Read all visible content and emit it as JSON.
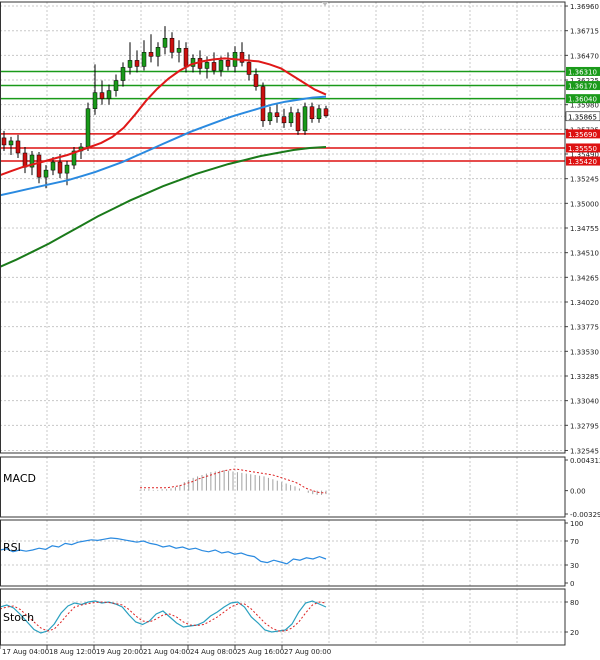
{
  "chart_data": {
    "type": "candlestick",
    "price_axis": {
      "ticks": [
        "1.36960",
        "1.36715",
        "1.36470",
        "1.36225",
        "1.35980",
        "1.35735",
        "1.35490",
        "1.35245",
        "1.35000",
        "1.34755",
        "1.34510",
        "1.34265",
        "1.34020",
        "1.33775",
        "1.33530",
        "1.33285",
        "1.33040",
        "1.32795",
        "1.32545"
      ],
      "range": [
        1.3252,
        1.37
      ]
    },
    "time_axis": {
      "labels": [
        "17 Aug 04:00",
        "18 Aug 12:00",
        "19 Aug 20:00",
        "21 Aug 04:00",
        "24 Aug 08:00",
        "25 Aug 16:00",
        "27 Aug 00:00"
      ]
    },
    "levels": [
      {
        "value": "1.36310",
        "color": "#1a9a1a"
      },
      {
        "value": "1.36170",
        "color": "#1a9a1a"
      },
      {
        "value": "1.36040",
        "color": "#1a9a1a"
      },
      {
        "value": "1.35690",
        "color": "#dd1111"
      },
      {
        "value": "1.35550",
        "color": "#dd1111"
      },
      {
        "value": "1.35420",
        "color": "#dd1111"
      }
    ],
    "current_price": "1.35865",
    "candles": [
      [
        1.3565,
        1.3572,
        1.3552,
        1.3558
      ],
      [
        1.3558,
        1.3566,
        1.3548,
        1.3562
      ],
      [
        1.3562,
        1.3568,
        1.3545,
        1.355
      ],
      [
        1.355,
        1.3556,
        1.353,
        1.3536
      ],
      [
        1.3536,
        1.3552,
        1.3528,
        1.3548
      ],
      [
        1.3548,
        1.3551,
        1.352,
        1.3526
      ],
      [
        1.3526,
        1.3538,
        1.3515,
        1.3533
      ],
      [
        1.3533,
        1.3546,
        1.3528,
        1.3541
      ],
      [
        1.3541,
        1.3549,
        1.3525,
        1.353
      ],
      [
        1.353,
        1.3542,
        1.3518,
        1.3538
      ],
      [
        1.3538,
        1.3556,
        1.3534,
        1.3552
      ],
      [
        1.3552,
        1.356,
        1.3544,
        1.3556
      ],
      [
        1.3556,
        1.36,
        1.3552,
        1.3594
      ],
      [
        1.3594,
        1.3638,
        1.3588,
        1.361
      ],
      [
        1.361,
        1.3622,
        1.3598,
        1.3604
      ],
      [
        1.3604,
        1.3618,
        1.3598,
        1.3612
      ],
      [
        1.3612,
        1.3628,
        1.3606,
        1.3622
      ],
      [
        1.3622,
        1.364,
        1.3616,
        1.3635
      ],
      [
        1.3635,
        1.366,
        1.3628,
        1.3642
      ],
      [
        1.3642,
        1.3652,
        1.363,
        1.3636
      ],
      [
        1.3636,
        1.3662,
        1.3632,
        1.365
      ],
      [
        1.365,
        1.3668,
        1.364,
        1.3646
      ],
      [
        1.3646,
        1.366,
        1.3636,
        1.3655
      ],
      [
        1.3655,
        1.3676,
        1.3648,
        1.3664
      ],
      [
        1.3664,
        1.367,
        1.3644,
        1.365
      ],
      [
        1.365,
        1.3662,
        1.364,
        1.3654
      ],
      [
        1.3654,
        1.366,
        1.363,
        1.3636
      ],
      [
        1.3636,
        1.3648,
        1.363,
        1.3644
      ],
      [
        1.3644,
        1.3652,
        1.3628,
        1.3634
      ],
      [
        1.3634,
        1.3646,
        1.3624,
        1.364
      ],
      [
        1.364,
        1.365,
        1.3628,
        1.3632
      ],
      [
        1.3632,
        1.3646,
        1.3626,
        1.3642
      ],
      [
        1.3642,
        1.365,
        1.3632,
        1.3636
      ],
      [
        1.3636,
        1.3656,
        1.363,
        1.365
      ],
      [
        1.365,
        1.366,
        1.3636,
        1.364
      ],
      [
        1.364,
        1.3648,
        1.3622,
        1.3628
      ],
      [
        1.3628,
        1.3634,
        1.3612,
        1.3616
      ],
      [
        1.3616,
        1.362,
        1.3576,
        1.3582
      ],
      [
        1.3582,
        1.3596,
        1.3578,
        1.359
      ],
      [
        1.359,
        1.3598,
        1.358,
        1.3586
      ],
      [
        1.3586,
        1.3594,
        1.3575,
        1.358
      ],
      [
        1.358,
        1.3596,
        1.3576,
        1.359
      ],
      [
        1.359,
        1.3594,
        1.3568,
        1.3572
      ],
      [
        1.3572,
        1.36,
        1.3568,
        1.3596
      ],
      [
        1.3596,
        1.36,
        1.358,
        1.3584
      ],
      [
        1.3584,
        1.3598,
        1.358,
        1.3594
      ],
      [
        1.3594,
        1.3597,
        1.3585,
        1.3587
      ]
    ],
    "ma_red": [
      1.3528,
      1.3532,
      1.3536,
      1.3539,
      1.3542,
      1.3545,
      1.3548,
      1.3552,
      1.3556,
      1.356,
      1.3566,
      1.3575,
      1.3588,
      1.3602,
      1.3614,
      1.3624,
      1.3632,
      1.3638,
      1.3641,
      1.3643,
      1.3644,
      1.3643,
      1.3642,
      1.3641,
      1.3638,
      1.3634,
      1.3627,
      1.362,
      1.3613,
      1.3608
    ],
    "ma_blue": [
      1.3508,
      1.3511,
      1.3514,
      1.3517,
      1.352,
      1.3523,
      1.3527,
      1.3531,
      1.3536,
      1.3541,
      1.3547,
      1.3553,
      1.3559,
      1.3565,
      1.3571,
      1.3576,
      1.3581,
      1.3586,
      1.359,
      1.3594,
      1.3598,
      1.3601,
      1.3603,
      1.3605,
      1.3606
    ],
    "ma_green": [
      1.3437,
      1.3444,
      1.3452,
      1.346,
      1.3469,
      1.3478,
      1.3487,
      1.3495,
      1.3503,
      1.351,
      1.3517,
      1.3523,
      1.3529,
      1.3534,
      1.3539,
      1.3543,
      1.3547,
      1.355,
      1.3553,
      1.3555,
      1.3556
    ],
    "macd": {
      "label": "MACD",
      "ticks": [
        "0.004312",
        "0.00",
        "-0.00329"
      ],
      "range": [
        -0.00329,
        0.004312
      ],
      "histogram": [
        0.0001,
        0.0002,
        0.0002,
        0.0001,
        0.0001,
        0.0002,
        0.0002,
        0.0003,
        0.0005,
        0.0008,
        0.0012,
        0.0015,
        0.0018,
        0.002,
        0.0022,
        0.0024,
        0.0026,
        0.0027,
        0.0028,
        0.0029,
        0.0028,
        0.0027,
        0.0026,
        0.0025,
        0.0024,
        0.0023,
        0.0022,
        0.0021,
        0.002,
        0.0018,
        0.0016,
        0.0014,
        0.0012,
        0.001,
        0.0008,
        0.0006,
        0.0003,
        0.0,
        -0.0003,
        -0.0005,
        -0.0006,
        -0.0006,
        -0.0005
      ],
      "signal": [
        0.0004,
        0.0004,
        0.0004,
        0.0004,
        0.0004,
        0.0004,
        0.0004,
        0.0005,
        0.0006,
        0.0007,
        0.0009,
        0.0011,
        0.0013,
        0.0016,
        0.0018,
        0.002,
        0.0022,
        0.0024,
        0.0026,
        0.0028,
        0.0029,
        0.003,
        0.003,
        0.0029,
        0.0028,
        0.0027,
        0.0026,
        0.0025,
        0.0024,
        0.0023,
        0.0022,
        0.002,
        0.0018,
        0.0016,
        0.0014,
        0.0012,
        0.0009,
        0.0005,
        0.0002,
        0.0,
        -0.0002,
        -0.0003,
        -0.0003
      ]
    },
    "rsi": {
      "label": "RSI",
      "ticks": [
        "100",
        "70",
        "30",
        "0"
      ],
      "range": [
        0,
        100
      ],
      "values": [
        55,
        57,
        52,
        55,
        53,
        55,
        58,
        56,
        62,
        60,
        66,
        64,
        68,
        70,
        72,
        71,
        73,
        75,
        74,
        72,
        70,
        68,
        70,
        66,
        64,
        60,
        62,
        58,
        60,
        56,
        58,
        54,
        52,
        55,
        50,
        52,
        48,
        50,
        46,
        44,
        36,
        34,
        38,
        35,
        32,
        40,
        38,
        42,
        40,
        44,
        40
      ]
    },
    "stoch": {
      "label": "Stoch",
      "ticks": [
        "80",
        "20"
      ],
      "range": [
        0,
        100
      ],
      "k": [
        70,
        74,
        68,
        55,
        40,
        25,
        18,
        22,
        36,
        58,
        72,
        78,
        75,
        80,
        82,
        78,
        80,
        76,
        70,
        54,
        40,
        35,
        42,
        56,
        62,
        50,
        38,
        30,
        32,
        34,
        40,
        52,
        60,
        70,
        78,
        80,
        70,
        50,
        38,
        24,
        20,
        22,
        24,
        36,
        60,
        78,
        82,
        76,
        70
      ],
      "d": [
        66,
        70,
        72,
        65,
        52,
        40,
        28,
        22,
        26,
        40,
        56,
        70,
        74,
        77,
        79,
        80,
        79,
        77,
        74,
        65,
        52,
        42,
        40,
        46,
        54,
        56,
        50,
        40,
        34,
        33,
        35,
        42,
        50,
        60,
        70,
        76,
        76,
        66,
        52,
        38,
        28,
        22,
        22,
        28,
        40,
        58,
        74,
        80,
        78
      ]
    }
  }
}
